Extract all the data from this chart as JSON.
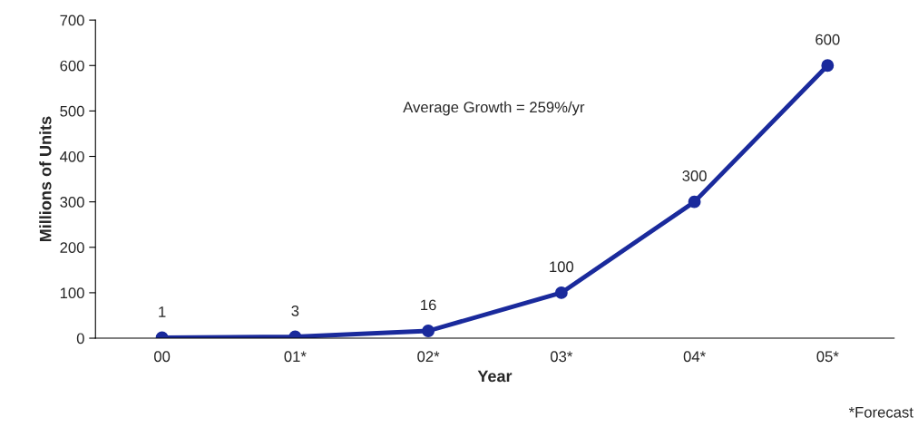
{
  "chart_data": {
    "type": "line",
    "xlabel": "Year",
    "ylabel": "Millions of Units",
    "categories": [
      "00",
      "01*",
      "02*",
      "03*",
      "04*",
      "05*"
    ],
    "series": [
      {
        "color": "#1a2a9c",
        "values": [
          1,
          3,
          16,
          100,
          300,
          600
        ]
      }
    ],
    "ylim": [
      0,
      700
    ],
    "yticks": [
      0,
      100,
      200,
      300,
      400,
      500,
      600,
      700
    ],
    "data_labels": true,
    "marker": "circle",
    "line_style": "solid",
    "grid": false,
    "legend": false,
    "annotations": [
      "Average Growth = 259%/yr",
      "*Forecast"
    ]
  }
}
